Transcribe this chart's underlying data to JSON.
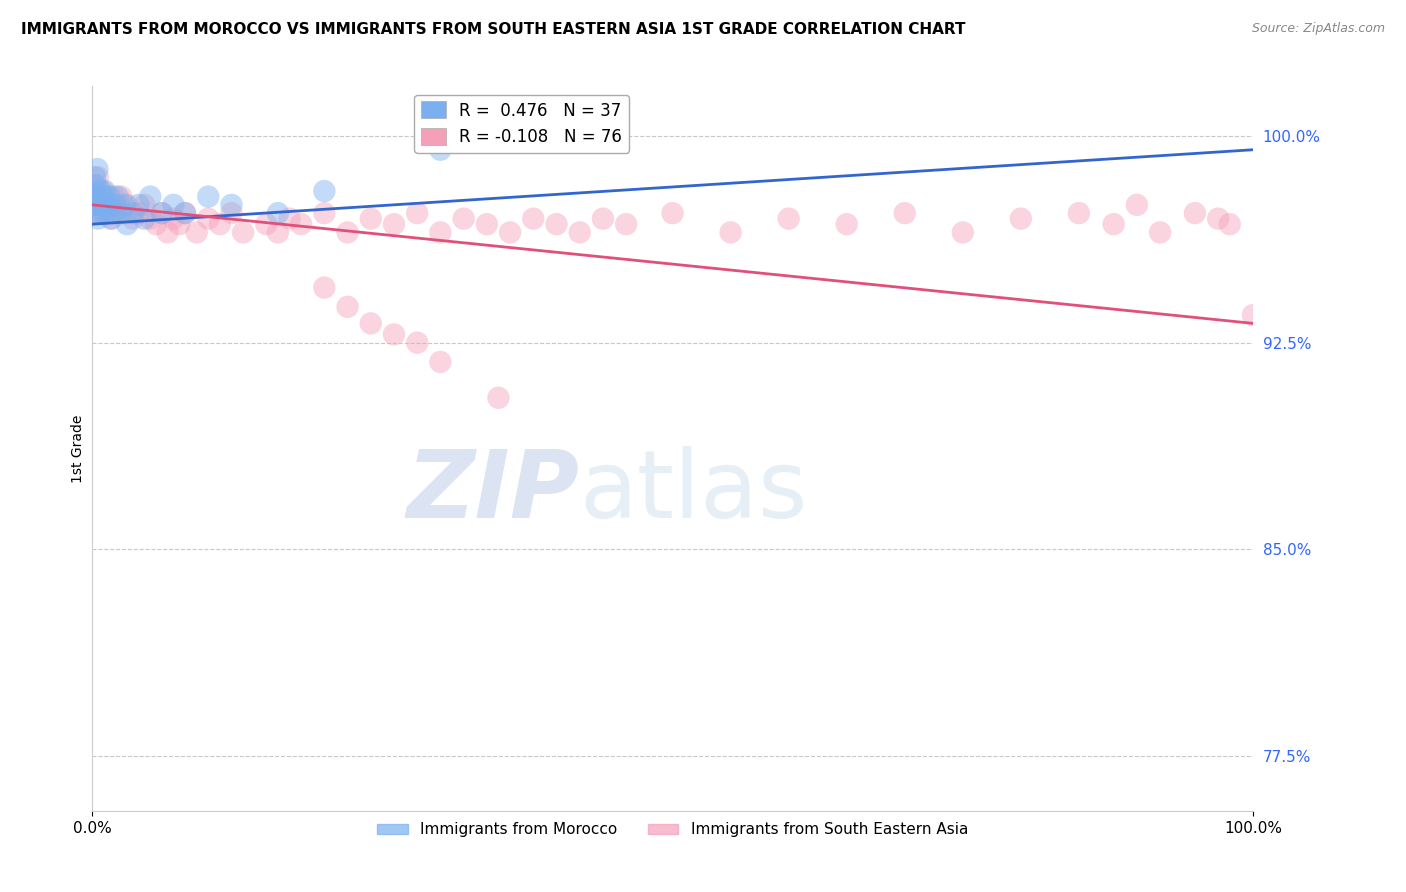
{
  "title": "IMMIGRANTS FROM MOROCCO VS IMMIGRANTS FROM SOUTH EASTERN ASIA 1ST GRADE CORRELATION CHART",
  "source": "Source: ZipAtlas.com",
  "ylabel": "1st Grade",
  "right_yticks": [
    77.5,
    85.0,
    92.5,
    100.0
  ],
  "right_ytick_labels": [
    "77.5%",
    "85.0%",
    "92.5%",
    "100.0%"
  ],
  "legend_entries": [
    {
      "label": "R =  0.476   N = 37",
      "color": "#7ab0f0"
    },
    {
      "label": "R = -0.108   N = 76",
      "color": "#f5a0b8"
    }
  ],
  "legend_bottom": [
    "Immigrants from Morocco",
    "Immigrants from South Eastern Asia"
  ],
  "blue_scatter_x": [
    0.1,
    0.15,
    0.2,
    0.25,
    0.3,
    0.35,
    0.4,
    0.45,
    0.5,
    0.6,
    0.7,
    0.8,
    0.9,
    1.0,
    1.1,
    1.2,
    1.4,
    1.5,
    1.6,
    1.8,
    2.0,
    2.2,
    2.5,
    2.8,
    3.0,
    3.5,
    4.0,
    4.5,
    5.0,
    6.0,
    7.0,
    8.0,
    10.0,
    12.0,
    16.0,
    20.0,
    30.0
  ],
  "blue_scatter_y": [
    97.2,
    97.8,
    98.0,
    98.5,
    97.5,
    98.2,
    97.8,
    98.8,
    97.0,
    97.5,
    98.0,
    97.2,
    97.8,
    97.5,
    98.0,
    97.2,
    97.5,
    97.8,
    97.0,
    97.2,
    97.5,
    97.8,
    97.2,
    97.5,
    96.8,
    97.2,
    97.5,
    97.0,
    97.8,
    97.2,
    97.5,
    97.2,
    97.8,
    97.5,
    97.2,
    98.0,
    99.5
  ],
  "pink_scatter_x": [
    0.1,
    0.2,
    0.3,
    0.4,
    0.5,
    0.6,
    0.7,
    0.8,
    0.9,
    1.0,
    1.1,
    1.2,
    1.3,
    1.5,
    1.7,
    1.9,
    2.0,
    2.2,
    2.5,
    2.8,
    3.0,
    3.5,
    4.0,
    4.5,
    5.0,
    5.5,
    6.0,
    6.5,
    7.0,
    7.5,
    8.0,
    9.0,
    10.0,
    11.0,
    12.0,
    13.0,
    15.0,
    16.0,
    17.0,
    18.0,
    20.0,
    22.0,
    24.0,
    26.0,
    28.0,
    30.0,
    32.0,
    34.0,
    36.0,
    38.0,
    40.0,
    42.0,
    44.0,
    46.0,
    50.0,
    55.0,
    60.0,
    65.0,
    70.0,
    75.0,
    80.0,
    85.0,
    88.0,
    90.0,
    92.0,
    95.0,
    97.0,
    98.0,
    100.0,
    20.0,
    22.0,
    24.0,
    26.0,
    28.0,
    30.0,
    35.0
  ],
  "pink_scatter_y": [
    97.8,
    98.2,
    97.5,
    97.8,
    98.5,
    97.2,
    97.8,
    97.5,
    98.0,
    97.2,
    97.5,
    97.8,
    97.2,
    97.5,
    97.0,
    97.8,
    97.2,
    97.5,
    97.8,
    97.2,
    97.5,
    97.0,
    97.2,
    97.5,
    97.0,
    96.8,
    97.2,
    96.5,
    97.0,
    96.8,
    97.2,
    96.5,
    97.0,
    96.8,
    97.2,
    96.5,
    96.8,
    96.5,
    97.0,
    96.8,
    97.2,
    96.5,
    97.0,
    96.8,
    97.2,
    96.5,
    97.0,
    96.8,
    96.5,
    97.0,
    96.8,
    96.5,
    97.0,
    96.8,
    97.2,
    96.5,
    97.0,
    96.8,
    97.2,
    96.5,
    97.0,
    97.2,
    96.8,
    97.5,
    96.5,
    97.2,
    97.0,
    96.8,
    93.5,
    94.5,
    93.8,
    93.2,
    92.8,
    92.5,
    91.8,
    90.5
  ],
  "blue_color": "#7ab0f0",
  "pink_color": "#f5a0b8",
  "blue_line_color": "#3366cc",
  "pink_line_color": "#e0507a",
  "watermark_zip": "ZIP",
  "watermark_atlas": "atlas",
  "background_color": "#ffffff",
  "grid_color": "#c8c8c8",
  "xlim": [
    0,
    100
  ],
  "ylim_bottom": 75.5,
  "ylim_top": 101.8,
  "blue_trend_x0": 0.0,
  "blue_trend_y0": 96.8,
  "blue_trend_x1": 100.0,
  "blue_trend_y1": 99.5,
  "pink_trend_x0": 0.0,
  "pink_trend_y0": 97.5,
  "pink_trend_x1": 100.0,
  "pink_trend_y1": 93.2
}
